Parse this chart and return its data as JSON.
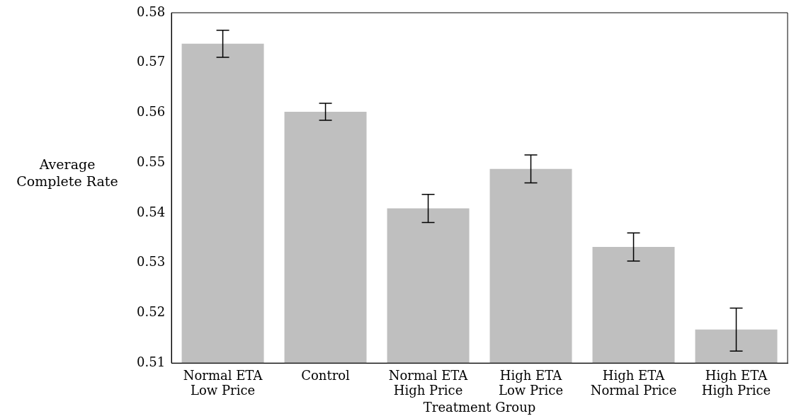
{
  "chart_data": {
    "type": "bar",
    "xlabel": "Treatment Group",
    "ylabel": "Average\nComplete Rate",
    "categories": [
      "Normal ETA\nLow Price",
      "Control",
      "Normal ETA\nHigh Price",
      "High ETA\nLow Price",
      "High ETA\nNormal Price",
      "High ETA\nHigh Price"
    ],
    "values": [
      0.5738,
      0.5602,
      0.5409,
      0.5488,
      0.5332,
      0.5167
    ],
    "errors": [
      0.0027,
      0.0017,
      0.0028,
      0.0028,
      0.0028,
      0.0043
    ],
    "color": "#bfbfbf",
    "ylim": [
      0.51,
      0.58
    ],
    "yticks": [
      0.51,
      0.52,
      0.53,
      0.54,
      0.55,
      0.56,
      0.57,
      0.58
    ],
    "grid": false,
    "legend": false
  }
}
